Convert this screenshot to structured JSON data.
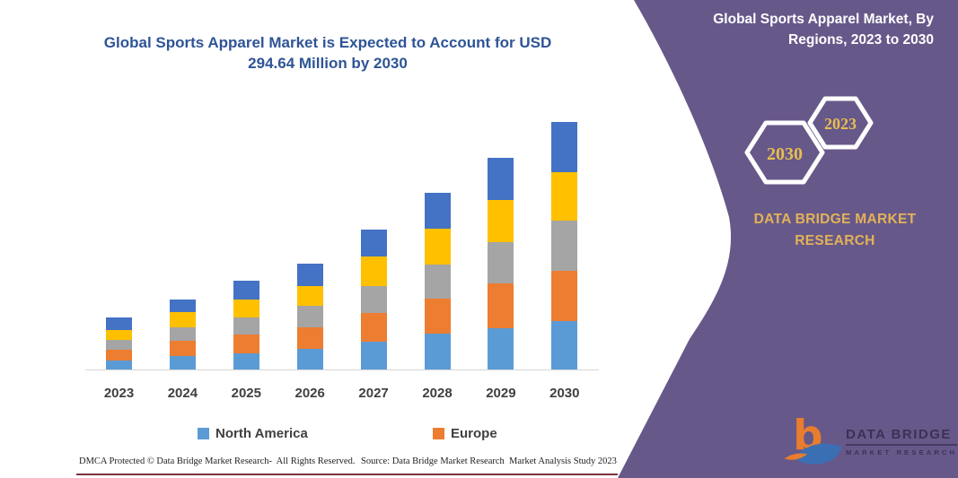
{
  "chart": {
    "title_line1": "Global Sports Apparel Market is Expected to Account for USD",
    "title_line2": "294.64 Million by 2030"
  },
  "chart_data": {
    "type": "bar",
    "stacked": true,
    "title": "Global Sports Apparel Market is Expected to Account for USD 294.64 Million by 2030",
    "unit": "USD Million",
    "categories": [
      "2023",
      "2024",
      "2025",
      "2026",
      "2027",
      "2028",
      "2029",
      "2030"
    ],
    "series": [
      {
        "name": "North America",
        "color": "#5B9BD5",
        "values": [
          10.7,
          16.4,
          19.6,
          24.9,
          32.8,
          42.4,
          48.8,
          57.7
        ]
      },
      {
        "name": "Europe",
        "color": "#ED7D31",
        "values": [
          12.5,
          17.8,
          22.1,
          24.9,
          34.5,
          42.0,
          53.4,
          59.9
        ]
      },
      {
        "name": "Unlabeled (gray)",
        "color": "#A5A5A5",
        "values": [
          12.5,
          15.7,
          20.6,
          26.0,
          32.1,
          40.9,
          49.9,
          59.5
        ]
      },
      {
        "name": "Unlabeled (yellow)",
        "color": "#FFC000",
        "values": [
          11.4,
          18.2,
          21.1,
          23.8,
          35.6,
          42.7,
          49.9,
          58.0
        ]
      },
      {
        "name": "Unlabeled (blue)",
        "color": "#4472C4",
        "values": [
          14.6,
          15.7,
          22.4,
          26.7,
          32.1,
          42.4,
          50.5,
          59.5
        ]
      }
    ],
    "totals": [
      61.7,
      83.8,
      105.8,
      126.3,
      167.1,
      210.4,
      252.5,
      294.6
    ],
    "legend": [
      "North America",
      "Europe"
    ],
    "legend_position": "bottom",
    "grid": false,
    "xlabel": "",
    "ylabel": "",
    "ylim": [
      0,
      295
    ]
  },
  "legend": {
    "items": [
      {
        "label": "North America",
        "color": "#5B9BD5"
      },
      {
        "label": "Europe",
        "color": "#ED7D31"
      }
    ]
  },
  "panel": {
    "title_line1": "Global Sports Apparel Market, By",
    "title_line2": "Regions, 2023 to 2030",
    "hexagon_back_label": "2023",
    "hexagon_front_label": "2030",
    "brand_line1": "DATA BRIDGE MARKET",
    "brand_line2": "RESEARCH",
    "colors": {
      "background": "#67588A",
      "gold": "#E2B258",
      "hex_year_gold": "#E7BE4F",
      "hex_stroke": "#FFFFFF"
    }
  },
  "logo": {
    "line1": "DATA BRIDGE",
    "line2": "MARKET RESEARCH"
  },
  "footer": {
    "dmca": "DMCA Protected © Data Bridge Market Research-  All Rights Reserved.",
    "source": "Source: Data Bridge Market Research  Market Analysis Study 2023"
  }
}
